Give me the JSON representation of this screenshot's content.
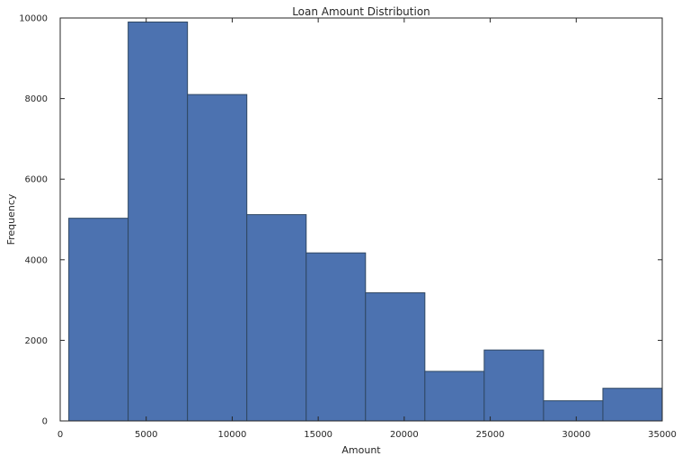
{
  "chart_data": {
    "type": "bar",
    "title": "Loan Amount Distribution",
    "xlabel": "Amount",
    "ylabel": "Frequency",
    "xlim": [
      0,
      35000
    ],
    "ylim": [
      0,
      10000
    ],
    "xticks": [
      0,
      5000,
      10000,
      15000,
      20000,
      25000,
      30000,
      35000
    ],
    "yticks": [
      0,
      2000,
      4000,
      6000,
      8000,
      10000
    ],
    "grid": false,
    "colors": {
      "bar_fill": "#4c72b0",
      "bar_edge": "#2f4763"
    },
    "bins": [
      {
        "start": 500,
        "end": 3950,
        "count": 5030
      },
      {
        "start": 3950,
        "end": 7400,
        "count": 9900
      },
      {
        "start": 7400,
        "end": 10850,
        "count": 8100
      },
      {
        "start": 10850,
        "end": 14300,
        "count": 5120
      },
      {
        "start": 14300,
        "end": 17750,
        "count": 4170
      },
      {
        "start": 17750,
        "end": 21200,
        "count": 3180
      },
      {
        "start": 21200,
        "end": 24650,
        "count": 1230
      },
      {
        "start": 24650,
        "end": 28100,
        "count": 1760
      },
      {
        "start": 28100,
        "end": 31550,
        "count": 500
      },
      {
        "start": 31550,
        "end": 35000,
        "count": 810
      }
    ]
  }
}
